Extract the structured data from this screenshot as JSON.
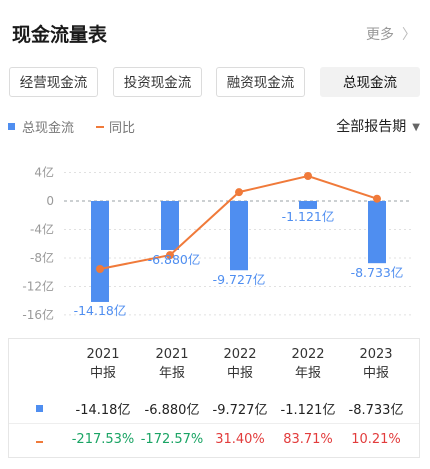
{
  "header": {
    "title": "现金流量表",
    "more_label": "更多",
    "more_chevron": "〉"
  },
  "tabs": [
    {
      "label": "经营现金流",
      "active": false
    },
    {
      "label": "投资现金流",
      "active": false
    },
    {
      "label": "融资现金流",
      "active": false
    },
    {
      "label": "总现金流",
      "active": true
    }
  ],
  "legend": {
    "bar_label": "总现金流",
    "line_label": "同比"
  },
  "period_select": {
    "label": "全部报告期"
  },
  "colors": {
    "bar": "#4f8ef0",
    "line": "#f07a3a",
    "positive": "#e23c3c",
    "negative": "#1aa464"
  },
  "chart_data": {
    "type": "bar",
    "categories": [
      "2021 中报",
      "2021 年报",
      "2022 中报",
      "2022 年报",
      "2023 中报"
    ],
    "y_ticks": [
      "4亿",
      "0",
      "-4亿",
      "-8亿",
      "-12亿",
      "-16亿"
    ],
    "ylim": [
      -16,
      4
    ],
    "series": [
      {
        "name": "总现金流",
        "type": "bar",
        "values": [
          -14.18,
          -6.88,
          -9.727,
          -1.121,
          -8.733
        ],
        "labels": [
          "-14.18亿",
          "-6.880亿",
          "-9.727亿",
          "-1.121亿",
          "-8.733亿"
        ]
      },
      {
        "name": "同比",
        "type": "line",
        "values": [
          -217.53,
          -172.57,
          31.4,
          83.71,
          10.21
        ]
      }
    ]
  },
  "table": {
    "columns": [
      {
        "year": "2021",
        "period": "中报"
      },
      {
        "year": "2021",
        "period": "年报"
      },
      {
        "year": "2022",
        "period": "中报"
      },
      {
        "year": "2022",
        "period": "年报"
      },
      {
        "year": "2023",
        "period": "中报"
      }
    ],
    "bar_row": [
      "-14.18亿",
      "-6.880亿",
      "-9.727亿",
      "-1.121亿",
      "-8.733亿"
    ],
    "yoy_row": [
      "-217.53%",
      "-172.57%",
      "31.40%",
      "83.71%",
      "10.21%"
    ]
  }
}
